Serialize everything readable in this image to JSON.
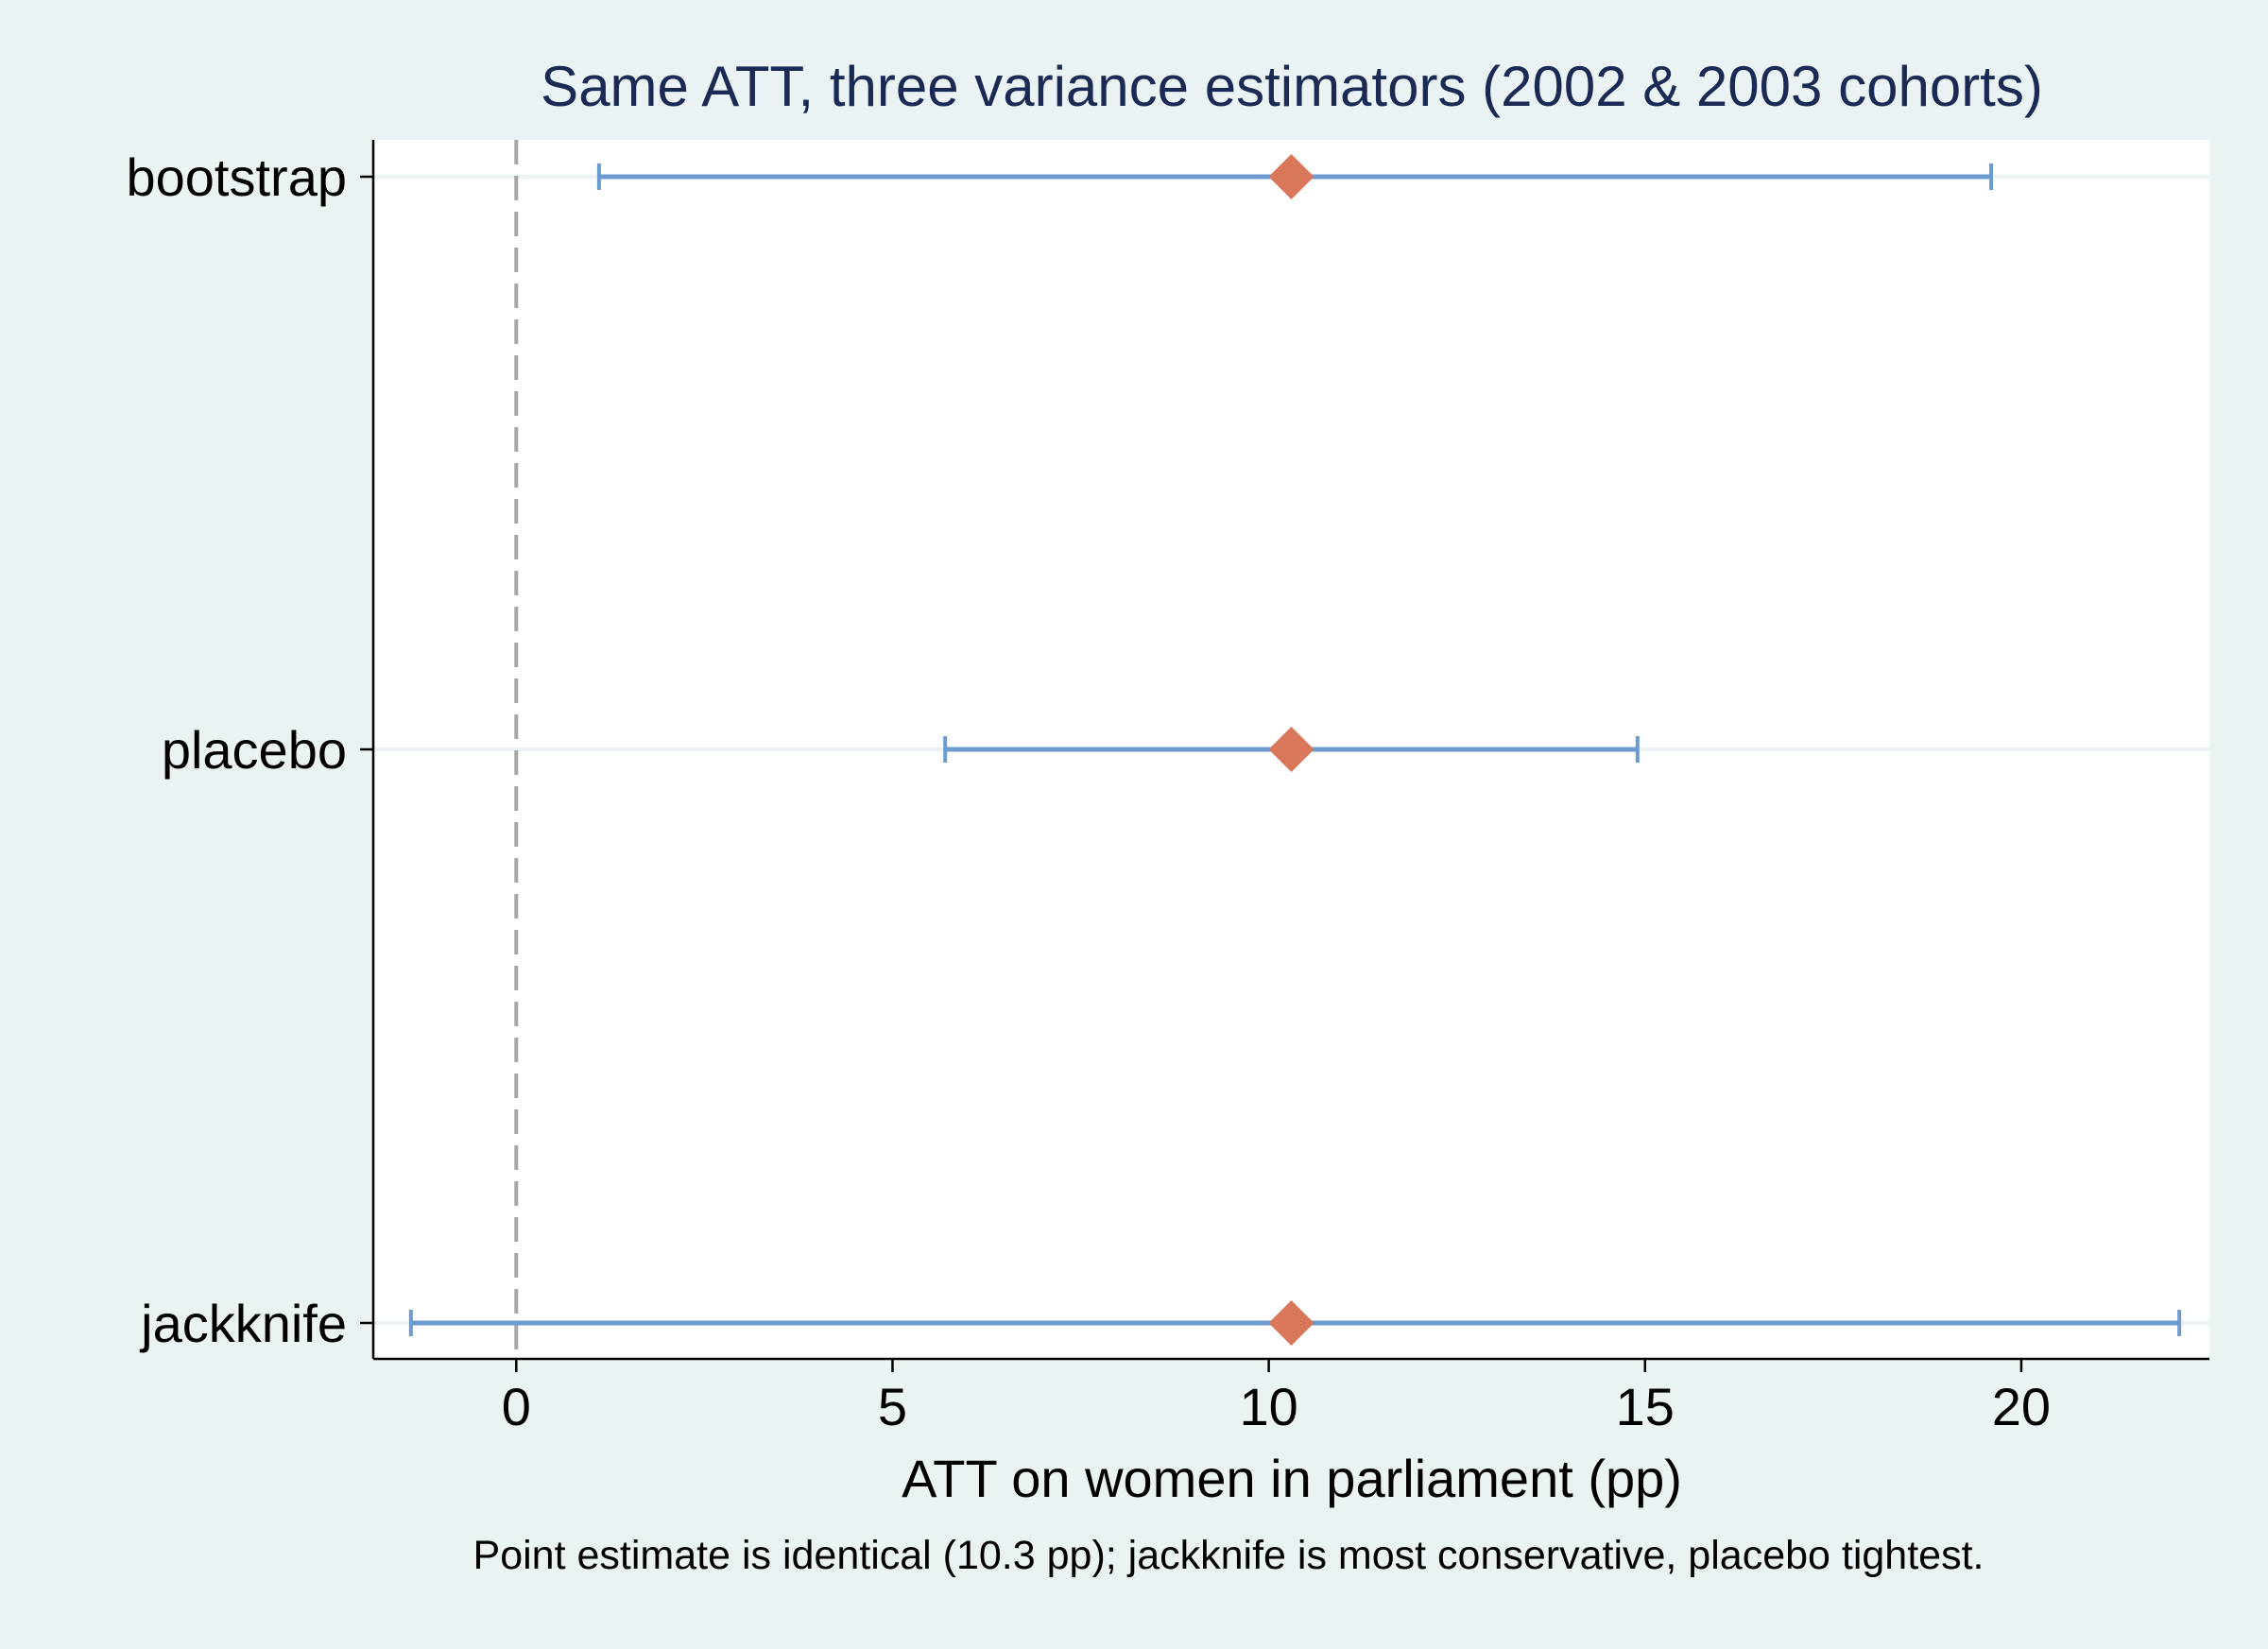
{
  "chart_data": {
    "type": "forest",
    "title": "Same ATT, three variance estimators (2002 & 2003 cohorts)",
    "xlabel": "ATT on women in parliament (pp)",
    "note": "Point estimate is identical (10.3 pp); jackknife is most conservative, placebo tightest.",
    "xlim": [
      -1.9,
      22.5
    ],
    "xticks": [
      0,
      5,
      10,
      15,
      20
    ],
    "reference_line": {
      "x": 0,
      "style": "dashed"
    },
    "grid": "horizontal",
    "categories": [
      "bootstrap",
      "placebo",
      "jackknife"
    ],
    "estimates": [
      {
        "label": "bootstrap",
        "estimate": 10.3,
        "ci_low": 1.1,
        "ci_high": 19.6
      },
      {
        "label": "placebo",
        "estimate": 10.3,
        "ci_low": 5.7,
        "ci_high": 14.9
      },
      {
        "label": "jackknife",
        "estimate": 10.3,
        "ci_low": -1.4,
        "ci_high": 22.1
      }
    ],
    "colors": {
      "background": "#eaf2f3",
      "plot_background": "#ffffff",
      "ci": "#6c9bd2",
      "point": "#d9775a",
      "reference": "#a6a6a6",
      "text": "#000000",
      "title": "#1a2a55",
      "grid": "#eaf2f3"
    }
  }
}
